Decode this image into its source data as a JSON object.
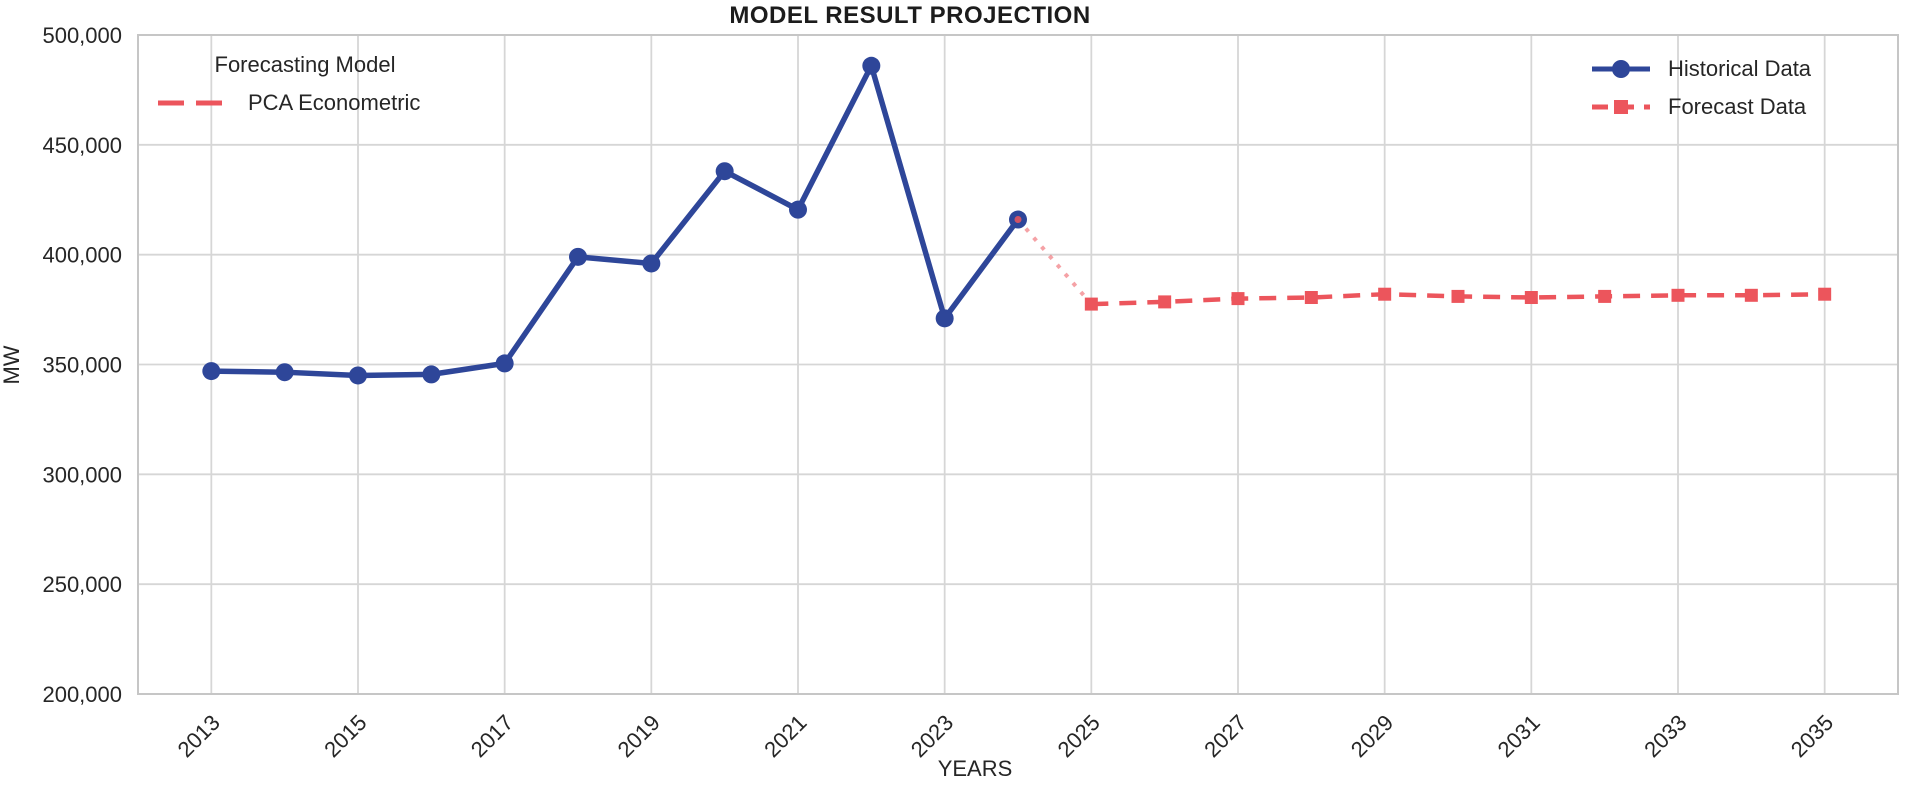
{
  "title": "MODEL RESULT PROJECTION",
  "colors": {
    "historical": "#2e4699",
    "forecast": "#ec555c",
    "connector": "#ec555c",
    "grid": "#d6d6d6",
    "spine": "#c6c6c6",
    "text": "#262626",
    "title_text": "#1c1c1c",
    "background": "#ffffff"
  },
  "legend_model": {
    "title": "Forecasting Model",
    "entry": "PCA Econometric"
  },
  "legend_series": {
    "historical_label": "Historical Data",
    "forecast_label": "Forecast Data"
  },
  "axis": {
    "xlabel": "YEARS",
    "ylabel": "MW"
  },
  "chart_data": {
    "type": "line",
    "title": "MODEL RESULT PROJECTION",
    "xlabel": "YEARS",
    "ylabel": "MW",
    "x_range": [
      2012,
      2036
    ],
    "y_range": [
      200000,
      500000
    ],
    "grid": true,
    "legend_position": [
      "upper left",
      "upper right"
    ],
    "x_ticks": [
      2013,
      2015,
      2017,
      2019,
      2021,
      2023,
      2025,
      2027,
      2029,
      2031,
      2033,
      2035
    ],
    "y_ticks": [
      200000,
      250000,
      300000,
      350000,
      400000,
      450000,
      500000
    ],
    "y_tick_labels": [
      "200,000",
      "250,000",
      "300,000",
      "350,000",
      "400,000",
      "450,000",
      "500,000"
    ],
    "series": [
      {
        "name": "Historical Data",
        "style": "solid",
        "marker": "circle",
        "color": "#2e4699",
        "x": [
          2013,
          2014,
          2015,
          2016,
          2017,
          2018,
          2019,
          2020,
          2021,
          2022,
          2023,
          2024
        ],
        "values": [
          347000,
          346500,
          345000,
          345500,
          350500,
          399000,
          396000,
          438000,
          420500,
          486000,
          371000,
          416000
        ]
      },
      {
        "name": "Forecast Data",
        "style": "dashed",
        "marker": "square",
        "color": "#ec555c",
        "x": [
          2025,
          2026,
          2027,
          2028,
          2029,
          2030,
          2031,
          2032,
          2033,
          2034,
          2035
        ],
        "values": [
          377500,
          378500,
          380000,
          380500,
          382000,
          381000,
          380500,
          381000,
          381500,
          381500,
          382000
        ]
      }
    ],
    "connector": {
      "name": "historical-to-forecast",
      "style": "dotted",
      "color": "#ec555c",
      "x": [
        2024,
        2025
      ],
      "values": [
        416000,
        377500
      ]
    }
  }
}
